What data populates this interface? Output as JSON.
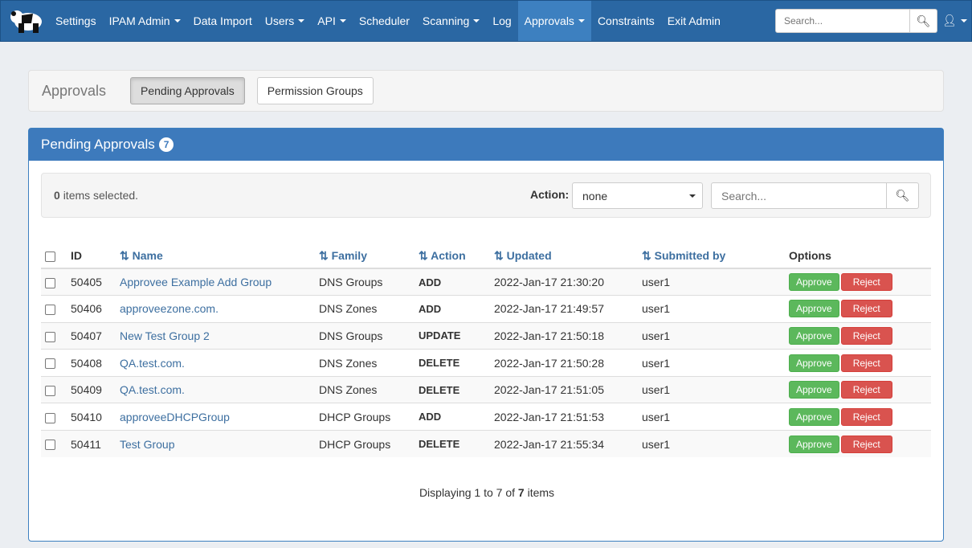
{
  "nav": {
    "items": [
      {
        "label": "Settings",
        "dd": false
      },
      {
        "label": "IPAM Admin",
        "dd": true
      },
      {
        "label": "Data Import",
        "dd": false
      },
      {
        "label": "Users",
        "dd": true
      },
      {
        "label": "API",
        "dd": true
      },
      {
        "label": "Scheduler",
        "dd": false
      },
      {
        "label": "Scanning",
        "dd": true
      },
      {
        "label": "Log",
        "dd": false
      },
      {
        "label": "Approvals",
        "dd": true,
        "active": true
      },
      {
        "label": "Constraints",
        "dd": false
      },
      {
        "label": "Exit Admin",
        "dd": false
      }
    ],
    "search_placeholder": "Search..."
  },
  "subbar": {
    "title": "Approvals",
    "buttons": [
      "Pending Approvals",
      "Permission Groups"
    ]
  },
  "panel": {
    "title": "Pending Approvals",
    "count": "7",
    "selected_count": "0",
    "selected_text": "items selected.",
    "action_label": "Action:",
    "action_value": "none",
    "search_placeholder": "Search...",
    "columns": [
      "ID",
      "Name",
      "Family",
      "Action",
      "Updated",
      "Submitted by",
      "Options"
    ],
    "rows": [
      {
        "id": "50405",
        "name": "Approvee Example Add Group",
        "family": "DNS Groups",
        "action": "ADD",
        "updated": "2022-Jan-17 21:30:20",
        "by": "user1"
      },
      {
        "id": "50406",
        "name": "approveezone.com.",
        "family": "DNS Zones",
        "action": "ADD",
        "updated": "2022-Jan-17 21:49:57",
        "by": "user1"
      },
      {
        "id": "50407",
        "name": "New Test Group 2",
        "family": "DNS Groups",
        "action": "UPDATE",
        "updated": "2022-Jan-17 21:50:18",
        "by": "user1"
      },
      {
        "id": "50408",
        "name": "QA.test.com.",
        "family": "DNS Zones",
        "action": "DELETE",
        "updated": "2022-Jan-17 21:50:28",
        "by": "user1"
      },
      {
        "id": "50409",
        "name": "QA.test.com.",
        "family": "DNS Zones",
        "action": "DELETE",
        "updated": "2022-Jan-17 21:51:05",
        "by": "user1"
      },
      {
        "id": "50410",
        "name": "approveeDHCPGroup",
        "family": "DHCP Groups",
        "action": "ADD",
        "updated": "2022-Jan-17 21:51:53",
        "by": "user1"
      },
      {
        "id": "50411",
        "name": "Test Group",
        "family": "DHCP Groups",
        "action": "DELETE",
        "updated": "2022-Jan-17 21:55:34",
        "by": "user1"
      }
    ],
    "approve_label": "Approve",
    "reject_label": "Reject",
    "footer": {
      "pre": "Displaying 1 to 7 of",
      "total": "7",
      "post": "items"
    }
  },
  "colors": {
    "navbar": "#2a67a3",
    "approve": "#5cb85c",
    "reject": "#d9534f"
  }
}
